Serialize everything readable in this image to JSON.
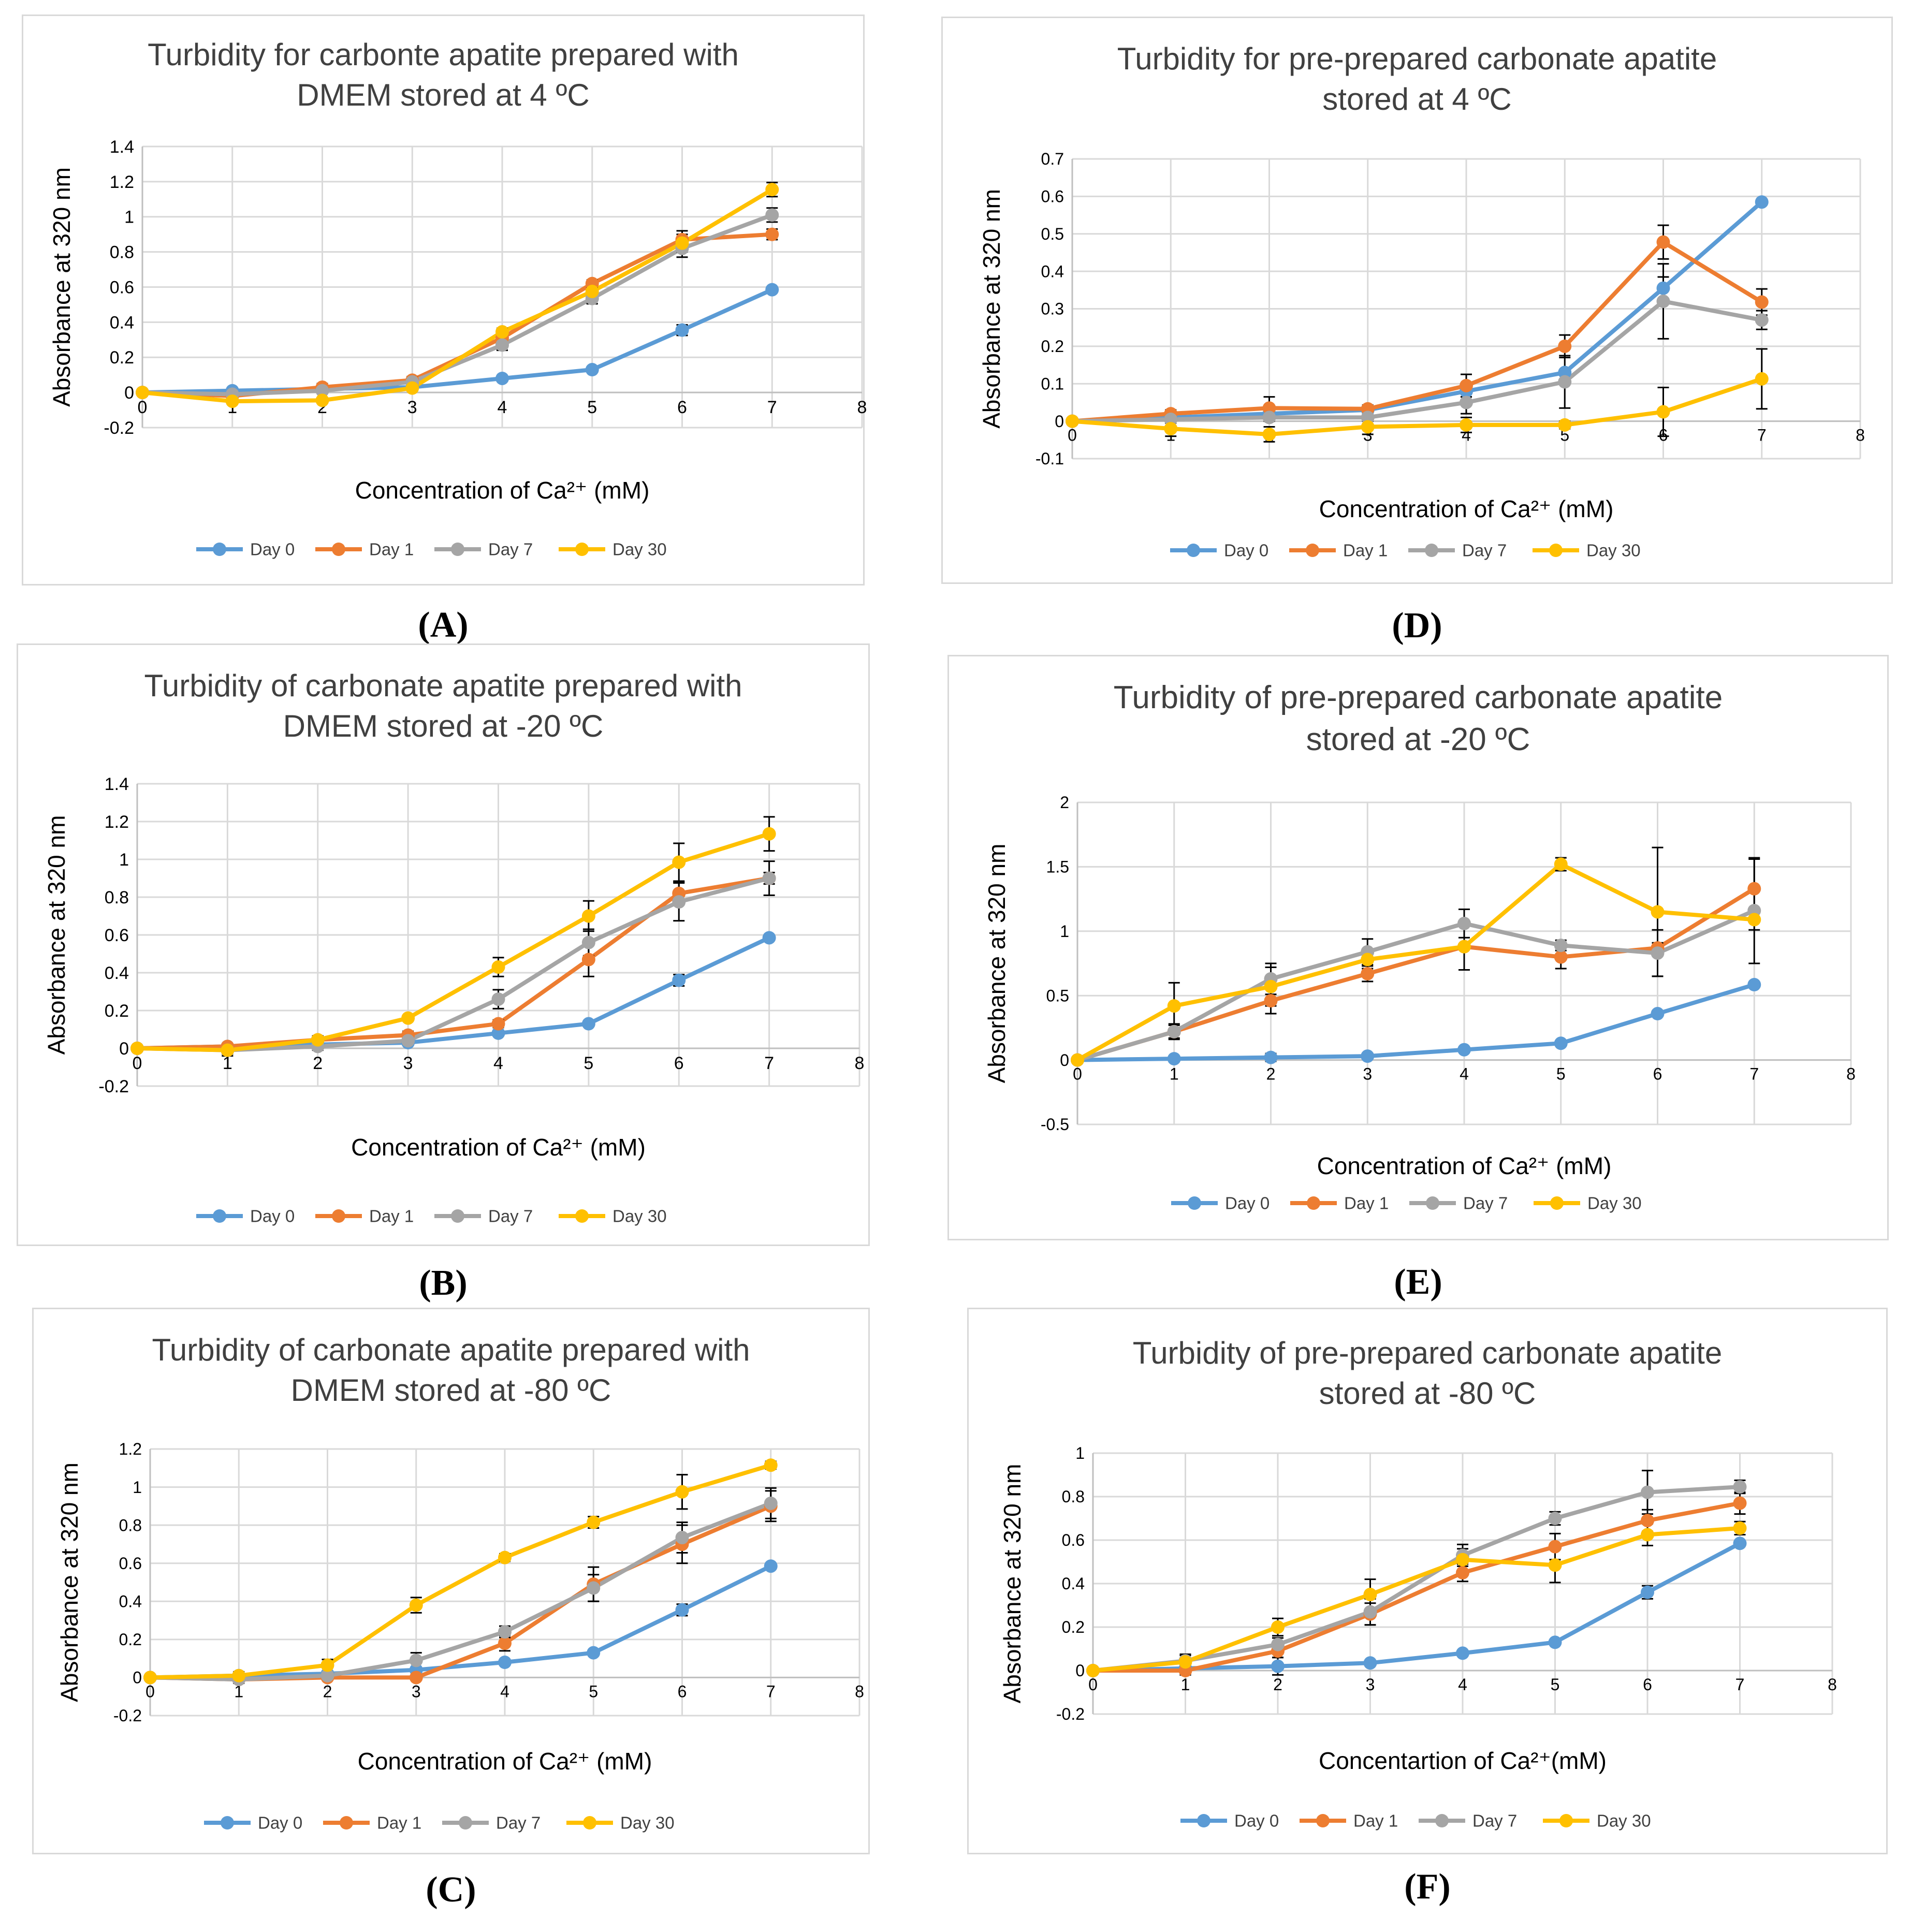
{
  "colors": {
    "Day 0": "#5b9bd5",
    "Day 1": "#ed7d31",
    "Day 7": "#a5a5a5",
    "Day 30": "#ffc000"
  },
  "legend_names": [
    "Day 0",
    "Day 1",
    "Day 7",
    "Day 30"
  ],
  "chart_data": [
    {
      "id": "A",
      "type": "line",
      "panel_label": "(A)",
      "title_lines": [
        "Turbidity for carbonte apatite prepared with",
        "DMEM stored at 4 ºC"
      ],
      "xlabel": "Concentration of Ca²⁺ (mM)",
      "ylabel": "Absorbance at 320 nm",
      "xlim": [
        0,
        8
      ],
      "ylim": [
        -0.2,
        1.4
      ],
      "yticks": [
        -0.2,
        0,
        0.2,
        0.4,
        0.6,
        0.8,
        1,
        1.2,
        1.4
      ],
      "ytick_labels": [
        "-0.2",
        "0",
        "0.2",
        "0.4",
        "0.6",
        "0.8",
        "1",
        "1.2",
        "1.4"
      ],
      "xticks": [
        "0",
        "1",
        "2",
        "3",
        "4",
        "5",
        "6",
        "7",
        "8"
      ],
      "x": [
        0,
        1,
        2,
        3,
        4,
        5,
        6,
        7
      ],
      "series": [
        {
          "name": "Day 0",
          "values": [
            0,
            0.01,
            0.02,
            0.03,
            0.08,
            0.13,
            0.355,
            0.585
          ],
          "err": [
            0,
            0,
            0,
            0,
            0,
            0,
            0.03,
            0
          ]
        },
        {
          "name": "Day 1",
          "values": [
            0,
            -0.02,
            0.03,
            0.07,
            0.31,
            0.62,
            0.87,
            0.9
          ],
          "err": [
            0,
            0,
            0.02,
            0.02,
            0.02,
            0.02,
            0.05,
            0.03
          ]
        },
        {
          "name": "Day 7",
          "values": [
            0,
            -0.01,
            0.01,
            0.06,
            0.27,
            0.535,
            0.82,
            1.01
          ],
          "err": [
            0,
            0,
            0.01,
            0.02,
            0.03,
            0.03,
            0.05,
            0.04
          ]
        },
        {
          "name": "Day 30",
          "values": [
            0,
            -0.05,
            -0.045,
            0.025,
            0.345,
            0.575,
            0.85,
            1.155
          ],
          "err": [
            0,
            0,
            0,
            0,
            0.02,
            0.02,
            0.05,
            0.04
          ]
        }
      ]
    },
    {
      "id": "B",
      "type": "line",
      "panel_label": "(B)",
      "title_lines": [
        "Turbidity of carbonate apatite prepared with",
        "DMEM stored at -20 ºC"
      ],
      "xlabel": "Concentration of Ca²⁺ (mM)",
      "ylabel": "Absorbance at 320 nm",
      "xlim": [
        0,
        8
      ],
      "ylim": [
        -0.2,
        1.4
      ],
      "yticks": [
        -0.2,
        0,
        0.2,
        0.4,
        0.6,
        0.8,
        1,
        1.2,
        1.4
      ],
      "ytick_labels": [
        "-0.2",
        "0",
        "0.2",
        "0.4",
        "0.6",
        "0.8",
        "1",
        "1.2",
        "1.4"
      ],
      "xticks": [
        "0",
        "1",
        "2",
        "3",
        "4",
        "5",
        "6",
        "7",
        "8"
      ],
      "x": [
        0,
        1,
        2,
        3,
        4,
        5,
        6,
        7
      ],
      "series": [
        {
          "name": "Day 0",
          "values": [
            0,
            0.01,
            0.02,
            0.03,
            0.08,
            0.13,
            0.36,
            0.585
          ],
          "err": [
            0,
            0,
            0,
            0,
            0,
            0,
            0.03,
            0
          ]
        },
        {
          "name": "Day 1",
          "values": [
            0,
            0.01,
            0.045,
            0.07,
            0.13,
            0.47,
            0.82,
            0.9
          ],
          "err": [
            0,
            0,
            0.02,
            0.02,
            0.02,
            0.09,
            0.06,
            0.03
          ]
        },
        {
          "name": "Day 7",
          "values": [
            0,
            -0.01,
            0.01,
            0.04,
            0.26,
            0.56,
            0.775,
            0.9
          ],
          "err": [
            0,
            0.03,
            0.02,
            0.02,
            0.05,
            0.07,
            0.1,
            0.09
          ]
        },
        {
          "name": "Day 30",
          "values": [
            0,
            -0.01,
            0.045,
            0.16,
            0.43,
            0.7,
            0.985,
            1.135
          ],
          "err": [
            0,
            0.02,
            0.02,
            0.01,
            0.05,
            0.08,
            0.1,
            0.09
          ]
        }
      ]
    },
    {
      "id": "C",
      "type": "line",
      "panel_label": "(C)",
      "title_lines": [
        "Turbidity of carbonate apatite prepared with",
        "DMEM stored at -80 ºC"
      ],
      "xlabel": "Concentration of Ca²⁺ (mM)",
      "ylabel": "Absorbance at 320 nm",
      "xlim": [
        0,
        8
      ],
      "ylim": [
        -0.2,
        1.2
      ],
      "yticks": [
        -0.2,
        0,
        0.2,
        0.4,
        0.6,
        0.8,
        1,
        1.2
      ],
      "ytick_labels": [
        "-0.2",
        "0",
        "0.2",
        "0.4",
        "0.6",
        "0.8",
        "1",
        "1.2"
      ],
      "xticks": [
        "0",
        "1",
        "2",
        "3",
        "4",
        "5",
        "6",
        "7",
        "8"
      ],
      "x": [
        0,
        1,
        2,
        3,
        4,
        5,
        6,
        7
      ],
      "series": [
        {
          "name": "Day 0",
          "values": [
            0,
            0.01,
            0.02,
            0.04,
            0.08,
            0.13,
            0.355,
            0.585
          ],
          "err": [
            0,
            0,
            0,
            0,
            0,
            0,
            0.03,
            0
          ]
        },
        {
          "name": "Day 1",
          "values": [
            0,
            -0.01,
            0,
            0,
            0.18,
            0.49,
            0.7,
            0.9
          ],
          "err": [
            0,
            0,
            0,
            0,
            0.04,
            0.09,
            0.1,
            0.08
          ]
        },
        {
          "name": "Day 7",
          "values": [
            0,
            -0.01,
            0.01,
            0.09,
            0.24,
            0.47,
            0.735,
            0.915
          ],
          "err": [
            0,
            0.02,
            0.02,
            0.04,
            0.03,
            0.07,
            0.08,
            0.08
          ]
        },
        {
          "name": "Day 30",
          "values": [
            0,
            0.01,
            0.065,
            0.38,
            0.63,
            0.815,
            0.975,
            1.115
          ],
          "err": [
            0,
            0.02,
            0.03,
            0.04,
            0.02,
            0.03,
            0.09,
            0.02
          ]
        }
      ]
    },
    {
      "id": "D",
      "type": "line",
      "panel_label": "(D)",
      "title_lines": [
        "Turbidity for pre-prepared carbonate apatite",
        "stored at 4 ºC"
      ],
      "xlabel": "Concentration of Ca²⁺ (mM)",
      "ylabel": "Absorbance at 320 nm",
      "xlim": [
        0,
        8
      ],
      "ylim": [
        -0.1,
        0.7
      ],
      "yticks": [
        -0.1,
        0,
        0.1,
        0.2,
        0.3,
        0.4,
        0.5,
        0.6,
        0.7
      ],
      "ytick_labels": [
        "-0.1",
        "0",
        "0.1",
        "0.2",
        "0.3",
        "0.4",
        "0.5",
        "0.6",
        "0.7"
      ],
      "xticks": [
        "0",
        "1",
        "2",
        "3",
        "4",
        "5",
        "6",
        "7",
        "8"
      ],
      "x": [
        0,
        1,
        2,
        3,
        4,
        5,
        6,
        7
      ],
      "series": [
        {
          "name": "Day 0",
          "values": [
            0,
            0.01,
            0.02,
            0.03,
            0.08,
            0.13,
            0.355,
            0.585
          ],
          "err": [
            0,
            0,
            0,
            0,
            0,
            0,
            0.03,
            0
          ]
        },
        {
          "name": "Day 1",
          "values": [
            0,
            0.02,
            0.035,
            0.033,
            0.095,
            0.2,
            0.478,
            0.318
          ],
          "err": [
            0,
            0.01,
            0.03,
            0.01,
            0.03,
            0.03,
            0.045,
            0.035
          ]
        },
        {
          "name": "Day 7",
          "values": [
            0,
            0.005,
            0.01,
            0.01,
            0.05,
            0.105,
            0.32,
            0.27
          ],
          "err": [
            0,
            0.01,
            0.01,
            0.01,
            0.03,
            0.07,
            0.1,
            0.025
          ]
        },
        {
          "name": "Day 30",
          "values": [
            0,
            -0.02,
            -0.035,
            -0.015,
            -0.01,
            -0.01,
            0.025,
            0.113
          ],
          "err": [
            0,
            0.02,
            0.02,
            0.02,
            0.02,
            0.01,
            0.065,
            0.08
          ]
        }
      ]
    },
    {
      "id": "E",
      "type": "line",
      "panel_label": "(E)",
      "title_lines": [
        "Turbidity of pre-prepared carbonate apatite",
        "stored at -20  ºC"
      ],
      "xlabel": "Concentration of Ca²⁺ (mM)",
      "ylabel": "Absorbance at 320 nm",
      "xlim": [
        0,
        8
      ],
      "ylim": [
        -0.5,
        2
      ],
      "yticks": [
        -0.5,
        0,
        0.5,
        1,
        1.5,
        2
      ],
      "ytick_labels": [
        "-0.5",
        "0",
        "0.5",
        "1",
        "1.5",
        "2"
      ],
      "xticks": [
        "0",
        "1",
        "2",
        "3",
        "4",
        "5",
        "6",
        "7",
        "8"
      ],
      "x": [
        0,
        1,
        2,
        3,
        4,
        5,
        6,
        7
      ],
      "series": [
        {
          "name": "Day 0",
          "values": [
            0,
            0.01,
            0.02,
            0.03,
            0.08,
            0.13,
            0.36,
            0.585
          ],
          "err": [
            0,
            0,
            0.03,
            0,
            0,
            0,
            0,
            0
          ]
        },
        {
          "name": "Day 1",
          "values": [
            0,
            0.22,
            0.46,
            0.67,
            0.88,
            0.8,
            0.87,
            1.33
          ],
          "err": [
            0,
            0.05,
            0.1,
            0.06,
            0.18,
            0.09,
            0.04,
            0.23
          ]
        },
        {
          "name": "Day 7",
          "values": [
            0,
            0.22,
            0.63,
            0.84,
            1.06,
            0.89,
            0.83,
            1.16
          ],
          "err": [
            0,
            0.06,
            0.12,
            0.1,
            0.11,
            0.04,
            0.18,
            0.41
          ]
        },
        {
          "name": "Day 30",
          "values": [
            0,
            0.42,
            0.57,
            0.78,
            0.88,
            1.52,
            1.15,
            1.09
          ],
          "err": [
            0,
            0.18,
            0.15,
            0.07,
            0.18,
            0.05,
            0.5,
            0.08
          ]
        }
      ]
    },
    {
      "id": "F",
      "type": "line",
      "panel_label": "(F)",
      "title_lines": [
        "Turbidity of pre-prepared carbonate apatite",
        "stored at -80 ºC"
      ],
      "xlabel": "Concentartion of Ca²⁺(mM)",
      "ylabel": "Absorbance at 320 nm",
      "xlim": [
        0,
        8
      ],
      "ylim": [
        -0.2,
        1
      ],
      "yticks": [
        -0.2,
        0,
        0.2,
        0.4,
        0.6,
        0.8,
        1
      ],
      "ytick_labels": [
        "-0.2",
        "0",
        "0.2",
        "0.4",
        "0.6",
        "0.8",
        "1"
      ],
      "xticks": [
        "0",
        "1",
        "2",
        "3",
        "4",
        "5",
        "6",
        "7",
        "8"
      ],
      "x": [
        0,
        1,
        2,
        3,
        4,
        5,
        6,
        7
      ],
      "series": [
        {
          "name": "Day 0",
          "values": [
            0,
            0.01,
            0.02,
            0.035,
            0.08,
            0.13,
            0.36,
            0.585
          ],
          "err": [
            0,
            0,
            0.04,
            0,
            0,
            0,
            0.03,
            0
          ]
        },
        {
          "name": "Day 1",
          "values": [
            0,
            0,
            0.09,
            0.26,
            0.45,
            0.57,
            0.69,
            0.77
          ],
          "err": [
            0,
            0.02,
            0.03,
            0.05,
            0.04,
            0.06,
            0.05,
            0.05
          ]
        },
        {
          "name": "Day 7",
          "values": [
            0,
            0.045,
            0.12,
            0.27,
            0.53,
            0.7,
            0.82,
            0.845
          ],
          "err": [
            0,
            0.03,
            0.03,
            0.06,
            0.05,
            0.03,
            0.1,
            0.03
          ]
        },
        {
          "name": "Day 30",
          "values": [
            0,
            0.04,
            0.2,
            0.35,
            0.51,
            0.485,
            0.625,
            0.655
          ],
          "err": [
            0,
            0.03,
            0.04,
            0.07,
            0.05,
            0.08,
            0.05,
            0.03
          ]
        }
      ]
    }
  ]
}
